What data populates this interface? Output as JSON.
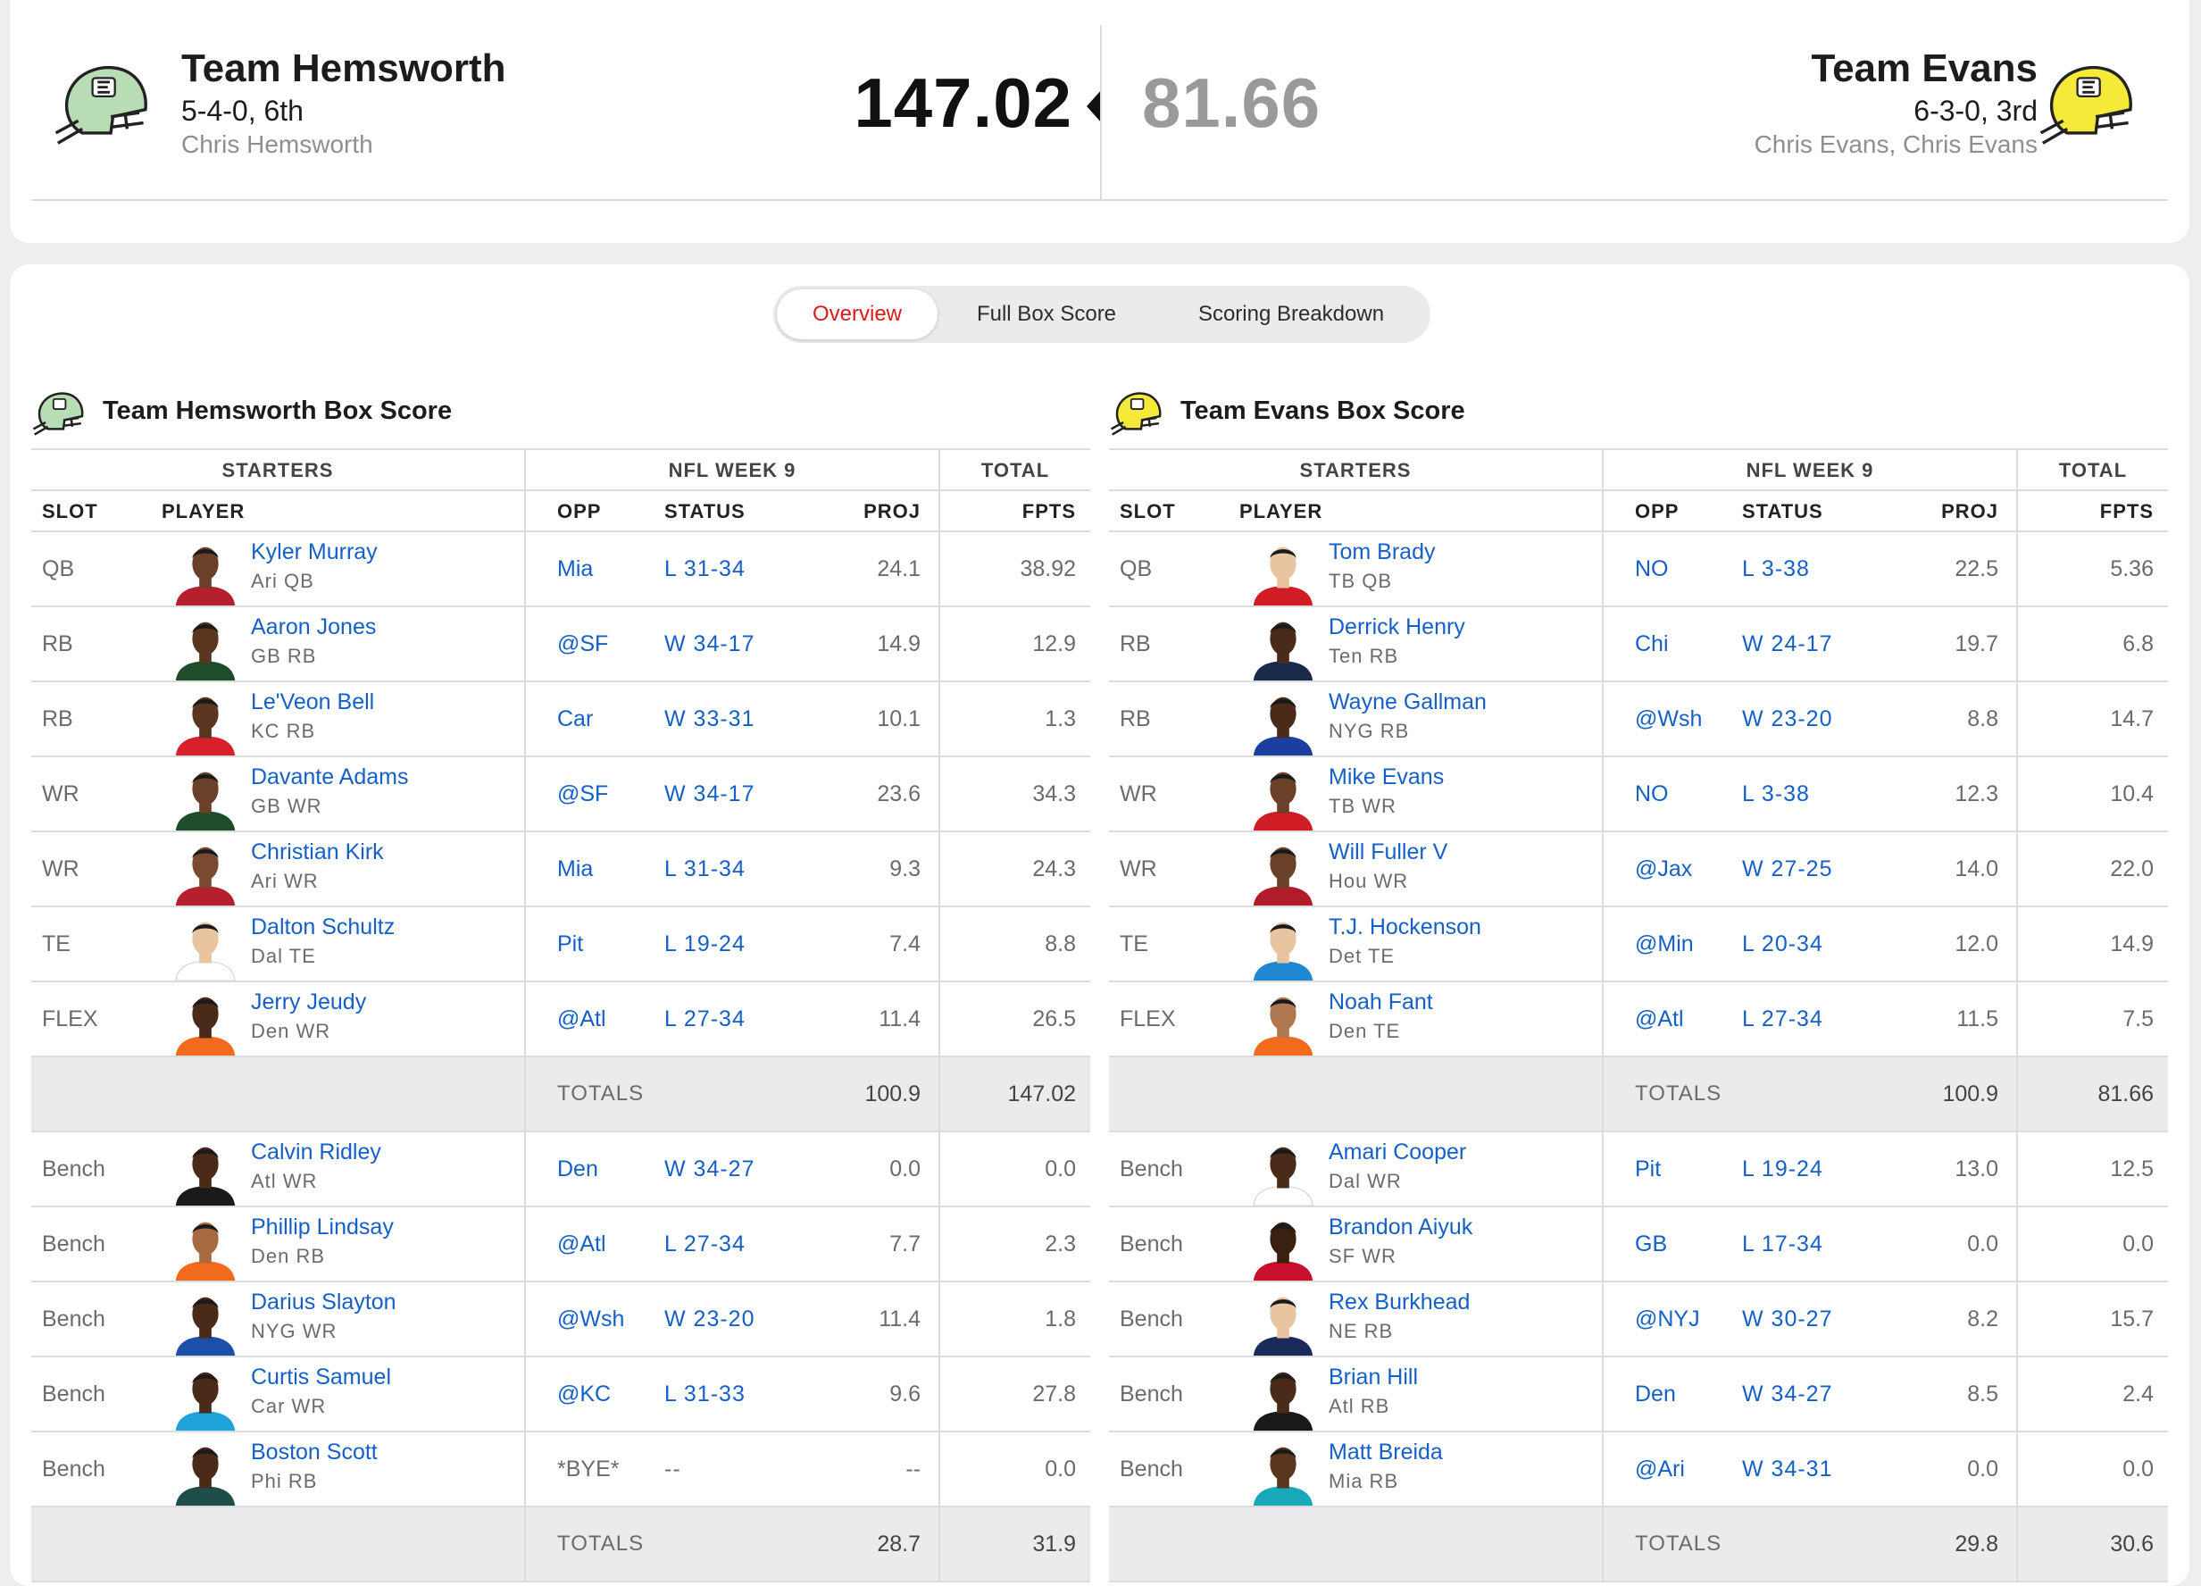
{
  "matchup": {
    "home": {
      "name": "Team Hemsworth",
      "record": "5-4-0, 6th",
      "owner": "Chris Hemsworth",
      "score": "147.02",
      "helmet_color": "#b8dcb4"
    },
    "away": {
      "name": "Team Evans",
      "record": "6-3-0, 3rd",
      "owner": "Chris Evans, Chris Evans",
      "score": "81.66",
      "helmet_color": "#f5ea3a"
    }
  },
  "tabs": [
    {
      "label": "Overview",
      "active": true
    },
    {
      "label": "Full Box Score",
      "active": false
    },
    {
      "label": "Scoring Breakdown",
      "active": false
    }
  ],
  "headers": {
    "starters": "STARTERS",
    "week": "NFL WEEK 9",
    "total": "TOTAL",
    "slot": "SLOT",
    "player": "PLAYER",
    "opp": "OPP",
    "status": "STATUS",
    "proj": "PROJ",
    "fpts": "FPTS",
    "totals": "TOTALS"
  },
  "boxscores": [
    {
      "title": "Team Hemsworth Box Score",
      "helmet_color": "#b8dcb4",
      "starters": [
        {
          "slot": "QB",
          "name": "Kyler Murray",
          "info": "Ari  QB",
          "opp": "Mia",
          "status": "L 31-34",
          "proj": "24.1",
          "fpts": "38.92",
          "jersey": "#b5202e",
          "skin": "#6b4028"
        },
        {
          "slot": "RB",
          "name": "Aaron Jones",
          "info": "GB  RB",
          "opp": "@SF",
          "status": "W 34-17",
          "proj": "14.9",
          "fpts": "12.9",
          "jersey": "#1f4d2c",
          "skin": "#5a3520"
        },
        {
          "slot": "RB",
          "name": "Le'Veon Bell",
          "info": "KC  RB",
          "opp": "Car",
          "status": "W 33-31",
          "proj": "10.1",
          "fpts": "1.3",
          "jersey": "#d8202a",
          "skin": "#5a3520"
        },
        {
          "slot": "WR",
          "name": "Davante Adams",
          "info": "GB  WR",
          "opp": "@SF",
          "status": "W 34-17",
          "proj": "23.6",
          "fpts": "34.3",
          "jersey": "#1f4d2c",
          "skin": "#6b4028"
        },
        {
          "slot": "WR",
          "name": "Christian Kirk",
          "info": "Ari  WR",
          "opp": "Mia",
          "status": "L 31-34",
          "proj": "9.3",
          "fpts": "24.3",
          "jersey": "#b5202e",
          "skin": "#7a4a30"
        },
        {
          "slot": "TE",
          "name": "Dalton Schultz",
          "info": "Dal  TE",
          "opp": "Pit",
          "status": "L 19-24",
          "proj": "7.4",
          "fpts": "8.8",
          "jersey": "#ffffff",
          "skin": "#e8c4a0"
        },
        {
          "slot": "FLEX",
          "name": "Jerry Jeudy",
          "info": "Den  WR",
          "opp": "@Atl",
          "status": "L 27-34",
          "proj": "11.4",
          "fpts": "26.5",
          "jersey": "#f26a1b",
          "skin": "#4a2a18"
        }
      ],
      "starter_totals": {
        "proj": "100.9",
        "fpts": "147.02"
      },
      "bench": [
        {
          "slot": "Bench",
          "name": "Calvin Ridley",
          "info": "Atl  WR",
          "opp": "Den",
          "status": "W 34-27",
          "proj": "0.0",
          "fpts": "0.0",
          "jersey": "#1a1a1a",
          "skin": "#4a2a18"
        },
        {
          "slot": "Bench",
          "name": "Phillip Lindsay",
          "info": "Den  RB",
          "opp": "@Atl",
          "status": "L 27-34",
          "proj": "7.7",
          "fpts": "2.3",
          "jersey": "#f26a1b",
          "skin": "#a86a40"
        },
        {
          "slot": "Bench",
          "name": "Darius Slayton",
          "info": "NYG  WR",
          "opp": "@Wsh",
          "status": "W 23-20",
          "proj": "11.4",
          "fpts": "1.8",
          "jersey": "#1b4fa8",
          "skin": "#4a2a18"
        },
        {
          "slot": "Bench",
          "name": "Curtis Samuel",
          "info": "Car  WR",
          "opp": "@KC",
          "status": "L 31-33",
          "proj": "9.6",
          "fpts": "27.8",
          "jersey": "#1fa3d8",
          "skin": "#4a2a18"
        },
        {
          "slot": "Bench",
          "name": "Boston Scott",
          "info": "Phi  RB",
          "opp": "*BYE*",
          "status": "--",
          "proj": "--",
          "fpts": "0.0",
          "jersey": "#1f4d4a",
          "skin": "#4a2a18"
        }
      ],
      "bench_totals": {
        "proj": "28.7",
        "fpts": "31.9"
      }
    },
    {
      "title": "Team Evans Box Score",
      "helmet_color": "#f5ea3a",
      "starters": [
        {
          "slot": "QB",
          "name": "Tom Brady",
          "info": "TB  QB",
          "opp": "NO",
          "status": "L 3-38",
          "proj": "22.5",
          "fpts": "5.36",
          "jersey": "#d01c24",
          "skin": "#e8c4a0"
        },
        {
          "slot": "RB",
          "name": "Derrick Henry",
          "info": "Ten  RB",
          "opp": "Chi",
          "status": "W 24-17",
          "proj": "19.7",
          "fpts": "6.8",
          "jersey": "#1a2a4a",
          "skin": "#4a2a18"
        },
        {
          "slot": "RB",
          "name": "Wayne Gallman",
          "info": "NYG  RB",
          "opp": "@Wsh",
          "status": "W 23-20",
          "proj": "8.8",
          "fpts": "14.7",
          "jersey": "#1b3fa0",
          "skin": "#4a2a18"
        },
        {
          "slot": "WR",
          "name": "Mike Evans",
          "info": "TB  WR",
          "opp": "NO",
          "status": "L 3-38",
          "proj": "12.3",
          "fpts": "10.4",
          "jersey": "#d01c24",
          "skin": "#6b4028"
        },
        {
          "slot": "WR",
          "name": "Will Fuller V",
          "info": "Hou  WR",
          "opp": "@Jax",
          "status": "W 27-25",
          "proj": "14.0",
          "fpts": "22.0",
          "jersey": "#b01c2a",
          "skin": "#6b4028"
        },
        {
          "slot": "TE",
          "name": "T.J. Hockenson",
          "info": "Det  TE",
          "opp": "@Min",
          "status": "L 20-34",
          "proj": "12.0",
          "fpts": "14.9",
          "jersey": "#1e88d0",
          "skin": "#e8c4a0"
        },
        {
          "slot": "FLEX",
          "name": "Noah Fant",
          "info": "Den  TE",
          "opp": "@Atl",
          "status": "L 27-34",
          "proj": "11.5",
          "fpts": "7.5",
          "jersey": "#f26a1b",
          "skin": "#b07850"
        }
      ],
      "starter_totals": {
        "proj": "100.9",
        "fpts": "81.66"
      },
      "bench": [
        {
          "slot": "Bench",
          "name": "Amari Cooper",
          "info": "Dal  WR",
          "opp": "Pit",
          "status": "L 19-24",
          "proj": "13.0",
          "fpts": "12.5",
          "jersey": "#ffffff",
          "skin": "#4a2a18"
        },
        {
          "slot": "Bench",
          "name": "Brandon Aiyuk",
          "info": "SF  WR",
          "opp": "GB",
          "status": "L 17-34",
          "proj": "0.0",
          "fpts": "0.0",
          "jersey": "#c8102e",
          "skin": "#3a2010"
        },
        {
          "slot": "Bench",
          "name": "Rex Burkhead",
          "info": "NE  RB",
          "opp": "@NYJ",
          "status": "W 30-27",
          "proj": "8.2",
          "fpts": "15.7",
          "jersey": "#1a2a5a",
          "skin": "#e8c4a0"
        },
        {
          "slot": "Bench",
          "name": "Brian Hill",
          "info": "Atl  RB",
          "opp": "Den",
          "status": "W 34-27",
          "proj": "8.5",
          "fpts": "2.4",
          "jersey": "#1a1a1a",
          "skin": "#4a2a18"
        },
        {
          "slot": "Bench",
          "name": "Matt Breida",
          "info": "Mia  RB",
          "opp": "@Ari",
          "status": "W 34-31",
          "proj": "0.0",
          "fpts": "0.0",
          "jersey": "#18a8b8",
          "skin": "#5a3520"
        }
      ],
      "bench_totals": {
        "proj": "29.8",
        "fpts": "30.6"
      }
    }
  ]
}
